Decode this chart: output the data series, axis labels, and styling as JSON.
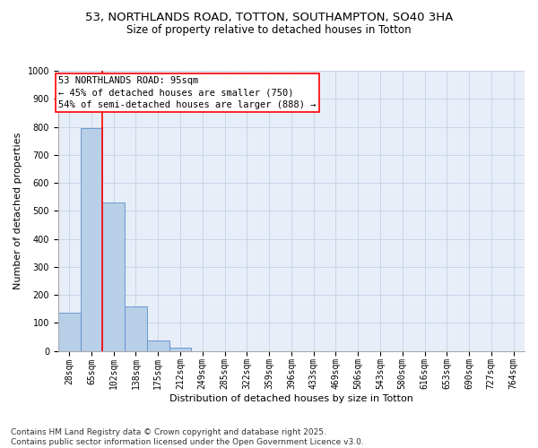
{
  "title_line1": "53, NORTHLANDS ROAD, TOTTON, SOUTHAMPTON, SO40 3HA",
  "title_line2": "Size of property relative to detached houses in Totton",
  "xlabel": "Distribution of detached houses by size in Totton",
  "ylabel": "Number of detached properties",
  "bar_labels": [
    "28sqm",
    "65sqm",
    "102sqm",
    "138sqm",
    "175sqm",
    "212sqm",
    "249sqm",
    "285sqm",
    "322sqm",
    "359sqm",
    "396sqm",
    "433sqm",
    "469sqm",
    "506sqm",
    "543sqm",
    "580sqm",
    "616sqm",
    "653sqm",
    "690sqm",
    "727sqm",
    "764sqm"
  ],
  "bar_values": [
    135,
    795,
    530,
    160,
    37,
    10,
    0,
    0,
    0,
    0,
    0,
    0,
    0,
    0,
    0,
    0,
    0,
    0,
    0,
    0,
    0
  ],
  "bar_color": "#b8cfe8",
  "bar_edge_color": "#5b8fc9",
  "ylim": [
    0,
    1000
  ],
  "yticks": [
    0,
    100,
    200,
    300,
    400,
    500,
    600,
    700,
    800,
    900,
    1000
  ],
  "annotation_line1": "53 NORTHLANDS ROAD: 95sqm",
  "annotation_line2": "← 45% of detached houses are smaller (750)",
  "annotation_line3": "54% of semi-detached houses are larger (888) →",
  "vline_x_index": 1.5,
  "footer_line1": "Contains HM Land Registry data © Crown copyright and database right 2025.",
  "footer_line2": "Contains public sector information licensed under the Open Government Licence v3.0.",
  "background_color": "#e8eef8",
  "grid_color": "#c8d4e8",
  "title_fontsize": 9.5,
  "subtitle_fontsize": 8.5,
  "axis_label_fontsize": 8,
  "tick_fontsize": 7,
  "annotation_fontsize": 7.5,
  "footer_fontsize": 6.5
}
